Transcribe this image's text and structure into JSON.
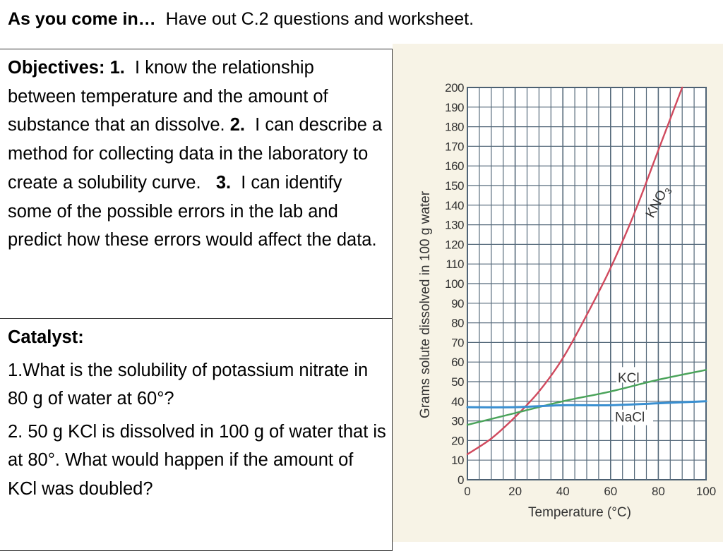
{
  "header": {
    "lead": "As you come in…",
    "text": "Have out C.2 questions and worksheet."
  },
  "objectives": {
    "label": "Objectives:",
    "n1": "1.",
    "t1": "I know the relationship between temperature and the amount of substance that an dissolve.",
    "n2": "2.",
    "t2": "I can describe a method for collecting data in the laboratory to create a solubility curve.",
    "n3": "3.",
    "t3": "I can identify some of the possible errors in the lab and predict how these errors would affect the data."
  },
  "catalyst": {
    "label": "Catalyst:",
    "q1": "1.What is the solubility of potassium nitrate in 80 g of water at 60°?",
    "q2": "2.  50 g KCl is dissolved in 100 g of water that is at 80°. What would happen if the amount of KCl was doubled?"
  },
  "chart_data": {
    "type": "line",
    "xlabel": "Temperature (°C)",
    "ylabel": "Grams solute dissolved in 100 g water",
    "xlim": [
      0,
      100
    ],
    "ylim": [
      0,
      200
    ],
    "x_ticks": [
      0,
      20,
      40,
      60,
      80,
      100
    ],
    "y_ticks": [
      0,
      10,
      20,
      30,
      40,
      50,
      60,
      70,
      80,
      90,
      100,
      110,
      120,
      130,
      140,
      150,
      160,
      170,
      180,
      190,
      200
    ],
    "grid": true,
    "series": [
      {
        "name": "KNO3",
        "color": "#d04a5e",
        "x": [
          0,
          10,
          20,
          30,
          40,
          50,
          60,
          70,
          80,
          90
        ],
        "values": [
          13,
          21,
          32,
          45,
          62,
          84,
          108,
          136,
          168,
          200
        ]
      },
      {
        "name": "KCl",
        "color": "#4aa35a",
        "x": [
          0,
          20,
          40,
          60,
          80,
          100
        ],
        "values": [
          28,
          34,
          40,
          45,
          51,
          56
        ]
      },
      {
        "name": "NaCl",
        "color": "#3a8fd0",
        "x": [
          0,
          20,
          40,
          60,
          80,
          100
        ],
        "values": [
          37,
          37,
          38,
          38,
          39,
          40
        ]
      }
    ]
  }
}
